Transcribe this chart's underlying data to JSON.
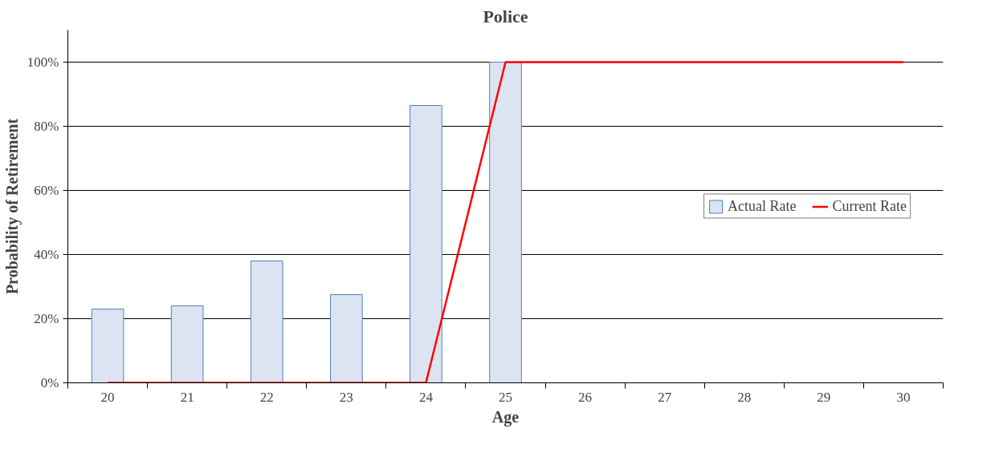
{
  "chart_data": {
    "type": "bar",
    "title": "Police",
    "xlabel": "Age",
    "ylabel": "Probability of Retirement",
    "categories": [
      "20",
      "21",
      "22",
      "23",
      "24",
      "25",
      "26",
      "27",
      "28",
      "29",
      "30"
    ],
    "series": [
      {
        "name": "Actual Rate",
        "color": "#dce3f1",
        "values": [
          23,
          24,
          38,
          27.5,
          86.5,
          100,
          null,
          null,
          null,
          null,
          null
        ]
      },
      {
        "name": "Current Rate",
        "type": "line",
        "color": "#ff0000",
        "values": [
          0,
          0,
          0,
          0,
          0,
          100,
          100,
          100,
          100,
          100,
          100
        ]
      }
    ],
    "ylim": [
      0,
      110
    ],
    "yticks": [
      {
        "value": 0,
        "label": "0%"
      },
      {
        "value": 20,
        "label": "20%"
      },
      {
        "value": 40,
        "label": "40%"
      },
      {
        "value": 60,
        "label": "60%"
      },
      {
        "value": 80,
        "label": "80%"
      },
      {
        "value": 100,
        "label": "100%"
      }
    ],
    "grid": "y",
    "legend": "right"
  }
}
